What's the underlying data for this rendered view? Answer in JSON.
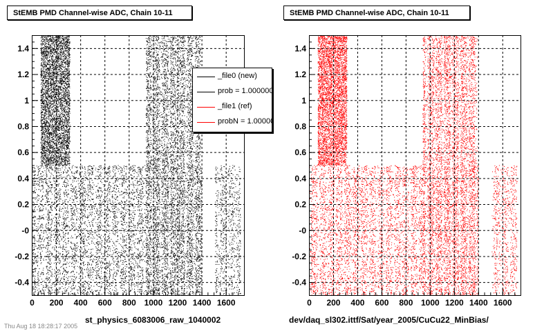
{
  "chart_data": [
    {
      "type": "scatter",
      "title": "StEMB PMD Channel-wise ADC, Chain 10-11",
      "xlabel": "st_physics_6083006_raw_1040002",
      "ylabel": "",
      "xlim": [
        0,
        1750
      ],
      "ylim": [
        -0.5,
        1.5
      ],
      "x_ticks": [
        "0",
        "200",
        "400",
        "600",
        "800",
        "1000",
        "1200",
        "1400",
        "1600"
      ],
      "y_ticks": [
        "-0.4",
        "-0.2",
        "-0",
        "0.2",
        "0.4",
        "0.6",
        "0.8",
        "1",
        "1.2",
        "1.4"
      ],
      "grid": true,
      "series": [
        {
          "name": "_file0 (new)",
          "color": "#000000",
          "clusters": [
            {
              "x": [
                72,
                312
              ],
              "y": [
                0.5,
                1.5
              ],
              "density": 1.0
            },
            {
              "x": [
                940,
                1390
              ],
              "y": [
                0.5,
                1.5
              ],
              "density": 0.45
            },
            {
              "x": [
                0,
                940
              ],
              "y": [
                -0.5,
                0.5
              ],
              "density": 0.35
            },
            {
              "x": [
                940,
                1400
              ],
              "y": [
                -0.5,
                0.5
              ],
              "density": 0.5
            },
            {
              "x": [
                1510,
                1720
              ],
              "y": [
                -0.5,
                0.5
              ],
              "density": 0.25
            }
          ]
        }
      ],
      "legend": {
        "placement": "top-right",
        "entries": [
          {
            "label": "_file0 (new)",
            "color": "#000000"
          },
          {
            "label": "prob = 1.000000",
            "color": "#000000"
          },
          {
            "label": "_file1 (ref)",
            "color": "#ff0000"
          },
          {
            "label": "probN = 1.000000",
            "color": "#ff0000"
          }
        ]
      }
    },
    {
      "type": "scatter",
      "title": "StEMB PMD Channel-wise ADC, Chain 10-11",
      "xlabel": "dev/daq_sl302.ittf/Sat/year_2005/CuCu22_MinBias/",
      "ylabel": "",
      "xlim": [
        0,
        1750
      ],
      "ylim": [
        -0.5,
        1.5
      ],
      "x_ticks": [
        "0",
        "200",
        "400",
        "600",
        "800",
        "1000",
        "1200",
        "1400",
        "1600"
      ],
      "y_ticks": [
        "-0.4",
        "-0.2",
        "-0",
        "0.2",
        "0.4",
        "0.6",
        "0.8",
        "1",
        "1.2",
        "1.4"
      ],
      "grid": true,
      "series": [
        {
          "name": "_file1 (ref)",
          "color": "#ff0000",
          "clusters": [
            {
              "x": [
                72,
                312
              ],
              "y": [
                0.5,
                1.5
              ],
              "density": 1.0
            },
            {
              "x": [
                940,
                1390
              ],
              "y": [
                0.5,
                1.5
              ],
              "density": 0.45
            },
            {
              "x": [
                0,
                940
              ],
              "y": [
                -0.5,
                0.5
              ],
              "density": 0.35
            },
            {
              "x": [
                940,
                1400
              ],
              "y": [
                -0.5,
                0.5
              ],
              "density": 0.5
            },
            {
              "x": [
                1510,
                1720
              ],
              "y": [
                -0.5,
                0.5
              ],
              "density": 0.25
            }
          ]
        }
      ]
    }
  ],
  "footer": "Thu Aug 18 18:28:17 2005"
}
